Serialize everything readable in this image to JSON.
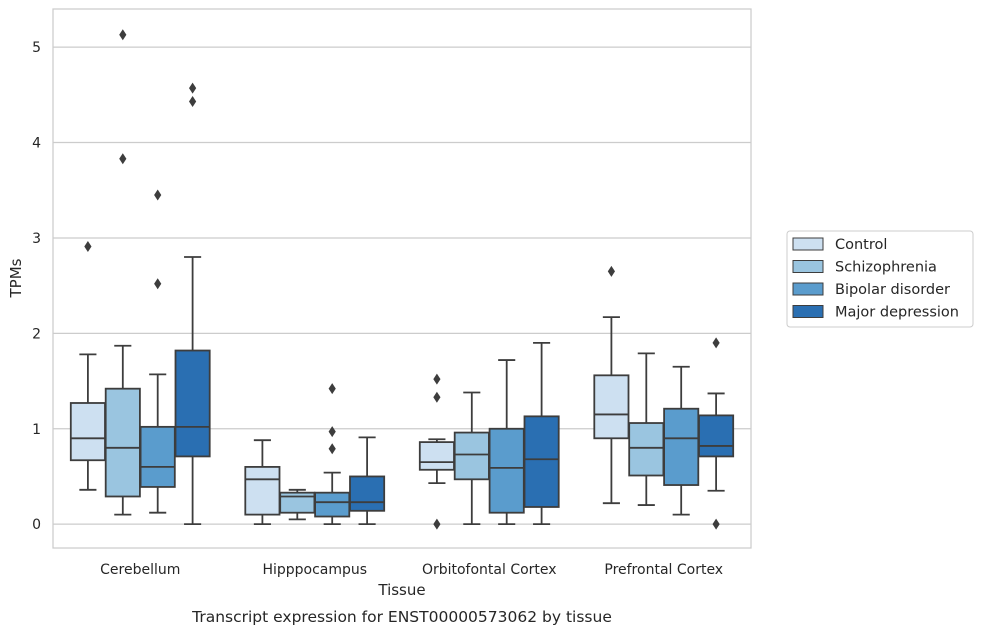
{
  "chart_data": {
    "type": "box",
    "title": "",
    "caption": "Transcript expression for ENST00000573062 by tissue",
    "xlabel": "Tissue",
    "ylabel": "TPMs",
    "ylim": [
      -0.25,
      5.4
    ],
    "yticks": [
      0,
      1,
      2,
      3,
      4,
      5
    ],
    "grid": true,
    "legend_position": "right",
    "categories": [
      "Cerebellum",
      "Hipppocampus",
      "Orbitofontal Cortex",
      "Prefrontal Cortex"
    ],
    "series": [
      {
        "name": "Control",
        "color": "#cde0f1",
        "boxes": [
          {
            "whisker_low": 0.36,
            "q1": 0.67,
            "median": 0.9,
            "q3": 1.27,
            "whisker_high": 1.78,
            "outliers": [
              2.91
            ]
          },
          {
            "whisker_low": 0.0,
            "q1": 0.1,
            "median": 0.47,
            "q3": 0.6,
            "whisker_high": 0.88,
            "outliers": []
          },
          {
            "whisker_low": 0.43,
            "q1": 0.57,
            "median": 0.65,
            "q3": 0.86,
            "whisker_high": 0.89,
            "outliers": [
              0.0,
              1.33,
              1.52
            ]
          },
          {
            "whisker_low": 0.22,
            "q1": 0.9,
            "median": 1.15,
            "q3": 1.56,
            "whisker_high": 2.17,
            "outliers": [
              2.65
            ]
          }
        ]
      },
      {
        "name": "Schizophrenia",
        "color": "#9ac5e0",
        "boxes": [
          {
            "whisker_low": 0.1,
            "q1": 0.29,
            "median": 0.8,
            "q3": 1.42,
            "whisker_high": 1.87,
            "outliers": [
              3.83,
              5.13
            ]
          },
          {
            "whisker_low": 0.05,
            "q1": 0.12,
            "median": 0.29,
            "q3": 0.33,
            "whisker_high": 0.36,
            "outliers": []
          },
          {
            "whisker_low": 0.0,
            "q1": 0.47,
            "median": 0.73,
            "q3": 0.96,
            "whisker_high": 1.38,
            "outliers": []
          },
          {
            "whisker_low": 0.2,
            "q1": 0.51,
            "median": 0.8,
            "q3": 1.06,
            "whisker_high": 1.79,
            "outliers": []
          }
        ]
      },
      {
        "name": "Bipolar disorder",
        "color": "#5a9ccd",
        "boxes": [
          {
            "whisker_low": 0.12,
            "q1": 0.39,
            "median": 0.6,
            "q3": 1.02,
            "whisker_high": 1.57,
            "outliers": [
              2.52,
              3.45
            ]
          },
          {
            "whisker_low": 0.0,
            "q1": 0.08,
            "median": 0.23,
            "q3": 0.33,
            "whisker_high": 0.54,
            "outliers": [
              0.79,
              0.97,
              1.42
            ]
          },
          {
            "whisker_low": 0.0,
            "q1": 0.12,
            "median": 0.59,
            "q3": 1.0,
            "whisker_high": 1.72,
            "outliers": []
          },
          {
            "whisker_low": 0.1,
            "q1": 0.41,
            "median": 0.9,
            "q3": 1.21,
            "whisker_high": 1.65,
            "outliers": []
          }
        ]
      },
      {
        "name": "Major depression",
        "color": "#2a6fb2",
        "boxes": [
          {
            "whisker_low": 0.0,
            "q1": 0.71,
            "median": 1.02,
            "q3": 1.82,
            "whisker_high": 2.8,
            "outliers": [
              4.43,
              4.57
            ]
          },
          {
            "whisker_low": 0.0,
            "q1": 0.14,
            "median": 0.23,
            "q3": 0.5,
            "whisker_high": 0.91,
            "outliers": []
          },
          {
            "whisker_low": 0.0,
            "q1": 0.18,
            "median": 0.68,
            "q3": 1.13,
            "whisker_high": 1.9,
            "outliers": []
          },
          {
            "whisker_low": 0.35,
            "q1": 0.71,
            "median": 0.82,
            "q3": 1.14,
            "whisker_high": 1.37,
            "outliers": [
              0.0,
              1.9
            ]
          }
        ]
      }
    ]
  }
}
